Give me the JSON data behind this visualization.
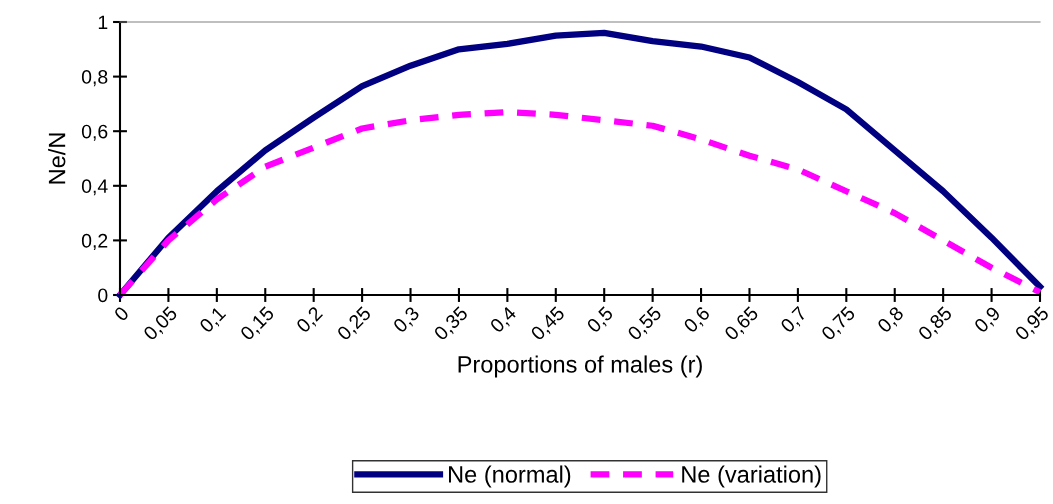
{
  "chart_data": {
    "type": "line",
    "xlabel": "Proportions of males (r)",
    "ylabel": "Ne/N",
    "categories": [
      "0",
      "0,05",
      "0,1",
      "0,15",
      "0,2",
      "0,25",
      "0,3",
      "0,35",
      "0,4",
      "0,45",
      "0,5",
      "0,55",
      "0,6",
      "0,65",
      "0,7",
      "0,75",
      "0,8",
      "0,85",
      "0,9",
      "0,95"
    ],
    "ylim": [
      0,
      1
    ],
    "yticks": [
      0,
      {
        "value": 0.2,
        "label": "0,2"
      },
      {
        "value": 0.4,
        "label": "0,4"
      },
      {
        "value": 0.6,
        "label": "0,6"
      },
      {
        "value": 0.8,
        "label": "0,8"
      },
      1
    ],
    "series": [
      {
        "name": "Ne (normal)",
        "color": "#000080",
        "line_style": "solid",
        "values": [
          0,
          0.21,
          0.38,
          0.53,
          0.65,
          0.765,
          0.84,
          0.9,
          0.92,
          0.95,
          0.96,
          0.93,
          0.91,
          0.87,
          0.78,
          0.68,
          0.53,
          0.38,
          0.21,
          0.03
        ]
      },
      {
        "name": "Ne (variation)",
        "color": "#ff00ff",
        "line_style": "dashed",
        "values": [
          0,
          0.2,
          0.35,
          0.47,
          0.54,
          0.61,
          0.64,
          0.66,
          0.67,
          0.66,
          0.64,
          0.62,
          0.57,
          0.51,
          0.46,
          0.38,
          0.3,
          0.2,
          0.1,
          0.01
        ]
      }
    ],
    "grid": false,
    "legend": "bottom",
    "marker": "none"
  }
}
